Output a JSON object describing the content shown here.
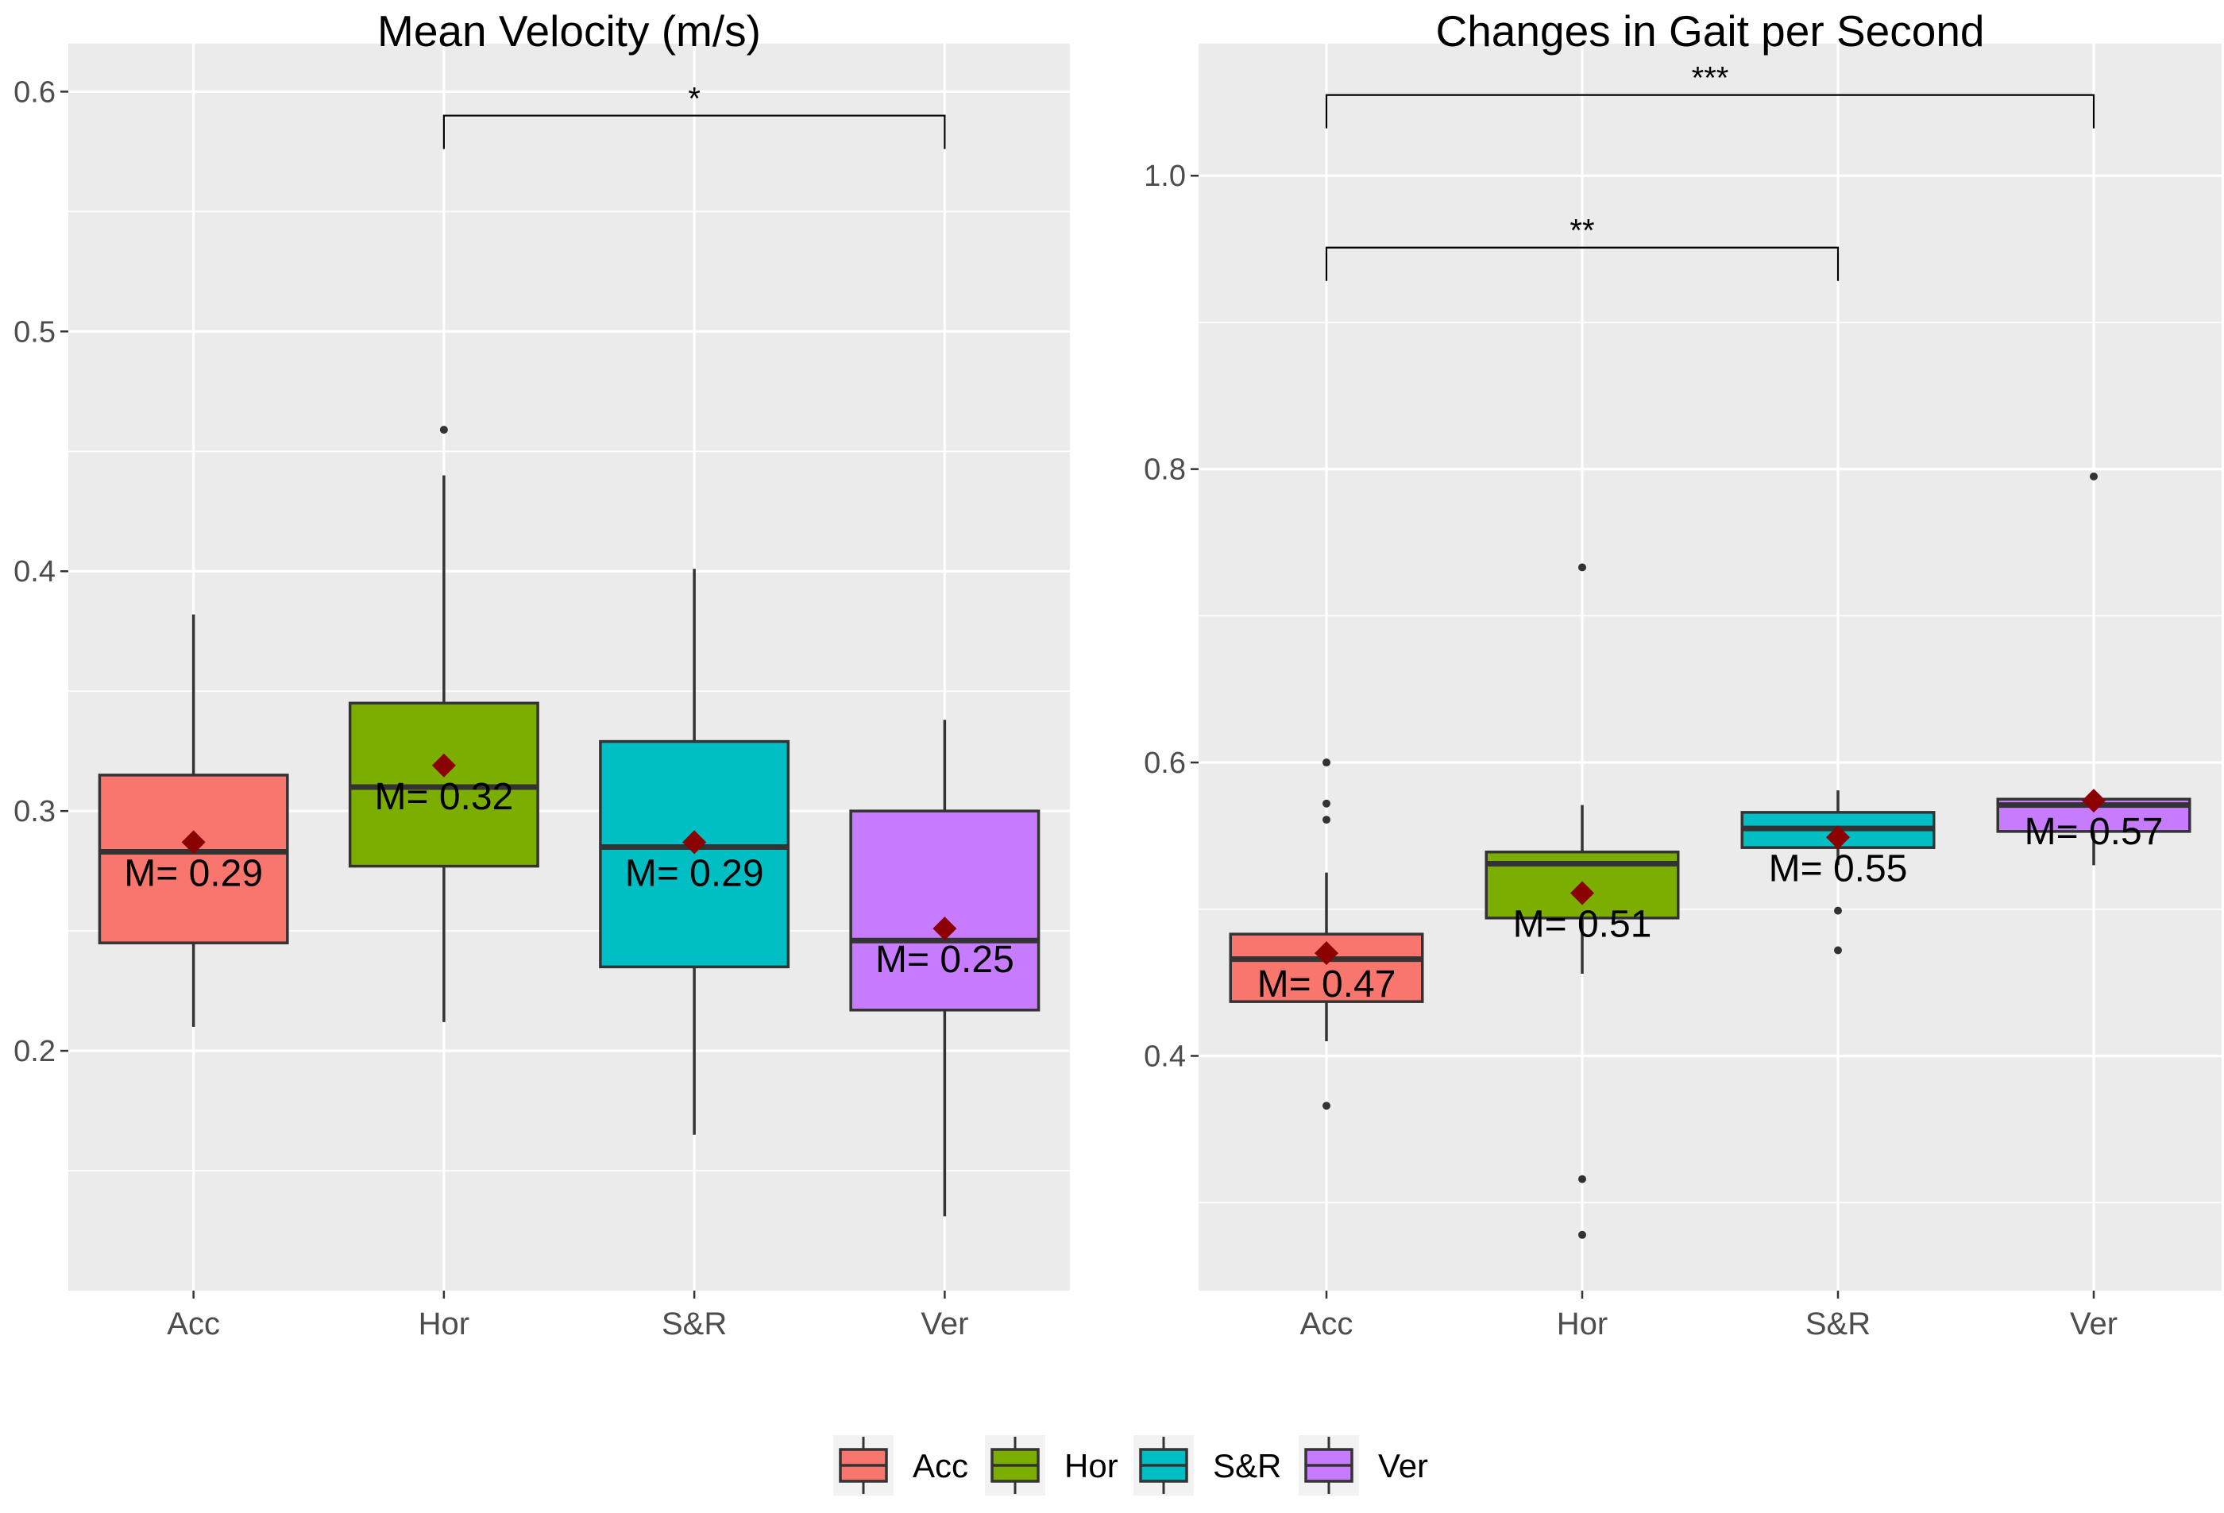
{
  "chart_data": [
    {
      "type": "boxplot",
      "title": "Mean Velocity (m/s)",
      "xlabel": "",
      "ylabel": "",
      "ylim": [
        0.1,
        0.62
      ],
      "y_ticks": [
        0.2,
        0.3,
        0.4,
        0.5,
        0.6
      ],
      "y_tick_labels": [
        "0.2",
        "0.3",
        "0.4",
        "0.5",
        "0.6"
      ],
      "grid": true,
      "categories": [
        "Acc",
        "Hor",
        "S&R",
        "Ver"
      ],
      "boxes": [
        {
          "category": "Acc",
          "q1": 0.245,
          "median": 0.283,
          "q3": 0.315,
          "whisker_low": 0.21,
          "whisker_high": 0.382,
          "mean": 0.287,
          "mean_label": "M= 0.29",
          "outliers": []
        },
        {
          "category": "Hor",
          "q1": 0.277,
          "median": 0.31,
          "q3": 0.345,
          "whisker_low": 0.212,
          "whisker_high": 0.44,
          "mean": 0.319,
          "mean_label": "M= 0.32",
          "outliers": [
            0.459
          ]
        },
        {
          "category": "S&R",
          "q1": 0.235,
          "median": 0.285,
          "q3": 0.329,
          "whisker_low": 0.165,
          "whisker_high": 0.401,
          "mean": 0.287,
          "mean_label": "M= 0.29",
          "outliers": []
        },
        {
          "category": "Ver",
          "q1": 0.217,
          "median": 0.246,
          "q3": 0.3,
          "whisker_low": 0.131,
          "whisker_high": 0.338,
          "mean": 0.251,
          "mean_label": "M= 0.25",
          "outliers": []
        }
      ],
      "significance": [
        {
          "from": "Hor",
          "to": "Ver",
          "y": 0.59,
          "label": "*"
        }
      ]
    },
    {
      "type": "boxplot",
      "title": "Changes in Gait per Second",
      "xlabel": "",
      "ylabel": "",
      "ylim": [
        0.24,
        1.09
      ],
      "y_ticks": [
        0.4,
        0.6,
        0.8,
        1.0
      ],
      "y_tick_labels": [
        "0.4",
        "0.6",
        "0.8",
        "1.0"
      ],
      "grid": true,
      "categories": [
        "Acc",
        "Hor",
        "S&R",
        "Ver"
      ],
      "boxes": [
        {
          "category": "Acc",
          "q1": 0.437,
          "median": 0.466,
          "q3": 0.483,
          "whisker_low": 0.41,
          "whisker_high": 0.525,
          "mean": 0.47,
          "mean_label": "M= 0.47",
          "outliers": [
            0.366,
            0.561,
            0.572,
            0.6
          ]
        },
        {
          "category": "Hor",
          "q1": 0.494,
          "median": 0.531,
          "q3": 0.539,
          "whisker_low": 0.456,
          "whisker_high": 0.571,
          "mean": 0.511,
          "mean_label": "M= 0.51",
          "outliers": [
            0.278,
            0.316,
            0.733
          ]
        },
        {
          "category": "S&R",
          "q1": 0.542,
          "median": 0.555,
          "q3": 0.566,
          "whisker_low": 0.53,
          "whisker_high": 0.581,
          "mean": 0.549,
          "mean_label": "M= 0.55",
          "outliers": [
            0.472,
            0.499
          ]
        },
        {
          "category": "Ver",
          "q1": 0.553,
          "median": 0.571,
          "q3": 0.575,
          "whisker_low": 0.53,
          "whisker_high": 0.577,
          "mean": 0.574,
          "mean_label": "M= 0.57",
          "outliers": [
            0.795
          ]
        }
      ],
      "significance": [
        {
          "from": "Acc",
          "to": "Ver",
          "y": 1.055,
          "label": "***"
        },
        {
          "from": "Acc",
          "to": "S&R",
          "y": 0.951,
          "label": "**"
        }
      ]
    }
  ],
  "legend": {
    "placement": "bottom",
    "items": [
      {
        "label": "Acc",
        "color": "#F8766D"
      },
      {
        "label": "Hor",
        "color": "#7CAE00"
      },
      {
        "label": "S&R",
        "color": "#00BFC4"
      },
      {
        "label": "Ver",
        "color": "#C77CFF"
      }
    ]
  },
  "colors": {
    "panel_background": "#EBEBEB",
    "grid": "#FFFFFF",
    "box_outline": "#333333",
    "mean_marker": "#8B0000",
    "outlier": "#333333"
  }
}
